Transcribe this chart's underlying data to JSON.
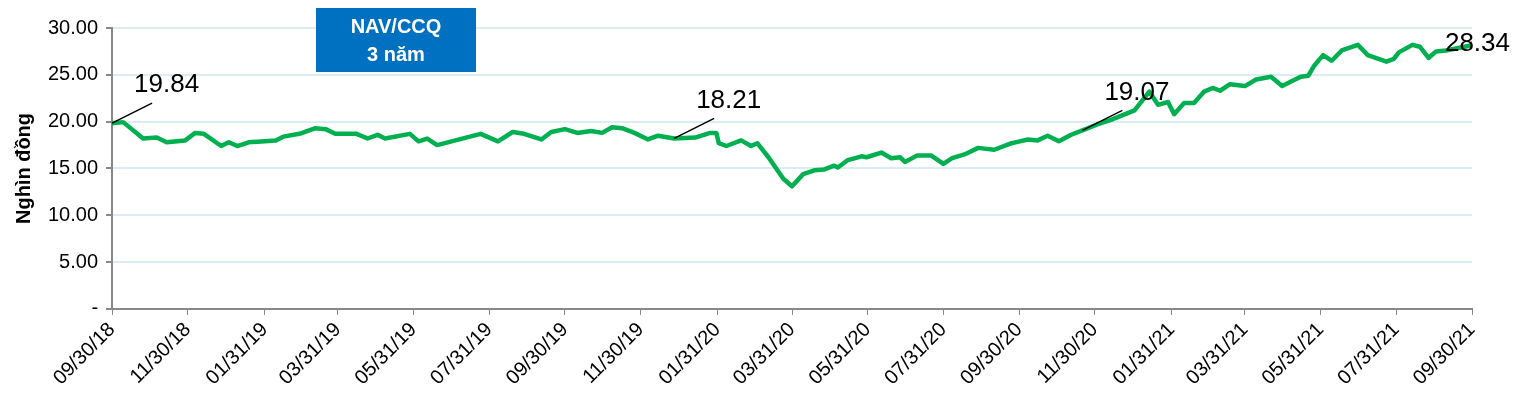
{
  "chart_data": {
    "type": "line",
    "title": "NAV/CCQ\n3 năm",
    "ylabel": "Nghìn đồng",
    "x": [
      "2018-09-30",
      "2018-10-09",
      "2018-10-25",
      "2018-11-05",
      "2018-11-13",
      "2018-11-28",
      "2018-12-06",
      "2018-12-13",
      "2018-12-27",
      "2019-01-02",
      "2019-01-09",
      "2019-01-18",
      "2019-02-09",
      "2019-02-15",
      "2019-02-28",
      "2019-03-13",
      "2019-03-21",
      "2019-03-29",
      "2019-04-15",
      "2019-04-24",
      "2019-05-02",
      "2019-05-08",
      "2019-05-28",
      "2019-06-04",
      "2019-06-11",
      "2019-06-19",
      "2019-07-24",
      "2019-08-07",
      "2019-08-19",
      "2019-08-28",
      "2019-09-11",
      "2019-09-19",
      "2019-09-30",
      "2019-10-10",
      "2019-10-21",
      "2019-10-30",
      "2019-11-07",
      "2019-11-15",
      "2019-11-25",
      "2019-12-06",
      "2019-12-14",
      "2019-12-27",
      "2020-01-13",
      "2020-01-25",
      "2020-01-30",
      "2020-02-01",
      "2020-02-07",
      "2020-02-19",
      "2020-02-27",
      "2020-03-03",
      "2020-03-12",
      "2020-03-24",
      "2020-03-31",
      "2020-04-09",
      "2020-04-18",
      "2020-04-26",
      "2020-05-04",
      "2020-05-07",
      "2020-05-15",
      "2020-05-26",
      "2020-05-30",
      "2020-06-11",
      "2020-06-19",
      "2020-06-26",
      "2020-06-30",
      "2020-07-10",
      "2020-07-21",
      "2020-07-31",
      "2020-08-07",
      "2020-08-17",
      "2020-08-28",
      "2020-09-10",
      "2020-09-24",
      "2020-10-07",
      "2020-10-15",
      "2020-10-23",
      "2020-11-01",
      "2020-11-11",
      "2020-11-20",
      "2020-12-02",
      "2020-12-13",
      "2021-01-01",
      "2021-01-13",
      "2021-01-20",
      "2021-01-28",
      "2021-02-02",
      "2021-02-10",
      "2021-02-18",
      "2021-02-26",
      "2021-03-05",
      "2021-03-11",
      "2021-03-19",
      "2021-03-31",
      "2021-04-09",
      "2021-04-21",
      "2021-04-30",
      "2021-05-06",
      "2021-05-15",
      "2021-05-21",
      "2021-05-26",
      "2021-06-02",
      "2021-06-09",
      "2021-06-17",
      "2021-06-30",
      "2021-07-08",
      "2021-07-23",
      "2021-07-29",
      "2021-08-02",
      "2021-08-13",
      "2021-08-19",
      "2021-08-26",
      "2021-09-01",
      "2021-09-09",
      "2021-09-28",
      "2021-09-30"
    ],
    "series": [
      {
        "color": "#00b050",
        "values": [
          19.84,
          19.95,
          18.2,
          18.3,
          17.8,
          18.0,
          18.8,
          18.7,
          17.4,
          17.8,
          17.4,
          17.8,
          18.0,
          18.4,
          18.7,
          19.3,
          19.2,
          18.7,
          18.7,
          18.2,
          18.6,
          18.2,
          18.7,
          17.9,
          18.2,
          17.5,
          18.7,
          17.9,
          18.9,
          18.7,
          18.1,
          18.9,
          19.2,
          18.8,
          19.0,
          18.8,
          19.4,
          19.3,
          18.8,
          18.1,
          18.5,
          18.21,
          18.3,
          18.8,
          18.8,
          17.7,
          17.4,
          18.0,
          17.4,
          17.7,
          16.2,
          13.9,
          13.1,
          14.4,
          14.8,
          14.9,
          15.3,
          15.1,
          15.9,
          16.3,
          16.2,
          16.7,
          16.1,
          16.2,
          15.7,
          16.4,
          16.4,
          15.5,
          16.1,
          16.5,
          17.2,
          17.0,
          17.7,
          18.1,
          18.0,
          18.5,
          17.9,
          18.6,
          19.07,
          19.7,
          20.2,
          21.2,
          23.2,
          21.8,
          22.1,
          20.8,
          22.0,
          22.0,
          23.2,
          23.6,
          23.3,
          24.0,
          23.8,
          24.5,
          24.8,
          23.8,
          24.2,
          24.8,
          24.9,
          26.0,
          27.1,
          26.5,
          27.6,
          28.2,
          27.1,
          26.4,
          26.7,
          27.4,
          28.2,
          28.0,
          26.8,
          27.5,
          27.6,
          28.1,
          28.34
        ]
      }
    ],
    "xlim": [
      "2018-09-30",
      "2021-09-30"
    ],
    "xticks": [
      {
        "value": "2018-09-30",
        "label": "09/30/18"
      },
      {
        "value": "2018-11-30",
        "label": "11/30/18"
      },
      {
        "value": "2019-01-31",
        "label": "01/31/19"
      },
      {
        "value": "2019-03-31",
        "label": "03/31/19"
      },
      {
        "value": "2019-05-31",
        "label": "05/31/19"
      },
      {
        "value": "2019-07-31",
        "label": "07/31/19"
      },
      {
        "value": "2019-09-30",
        "label": "09/30/19"
      },
      {
        "value": "2019-11-30",
        "label": "11/30/19"
      },
      {
        "value": "2020-01-31",
        "label": "01/31/20"
      },
      {
        "value": "2020-03-31",
        "label": "03/31/20"
      },
      {
        "value": "2020-05-31",
        "label": "05/31/20"
      },
      {
        "value": "2020-07-31",
        "label": "07/31/20"
      },
      {
        "value": "2020-09-30",
        "label": "09/30/20"
      },
      {
        "value": "2020-11-30",
        "label": "11/30/20"
      },
      {
        "value": "2021-01-31",
        "label": "01/31/21"
      },
      {
        "value": "2021-03-31",
        "label": "03/31/21"
      },
      {
        "value": "2021-05-31",
        "label": "05/31/21"
      },
      {
        "value": "2021-07-31",
        "label": "07/31/21"
      },
      {
        "value": "2021-09-30",
        "label": "09/30/21"
      }
    ],
    "ylim": [
      0,
      30
    ],
    "yticks": [
      {
        "value": 0,
        "label": "-"
      },
      {
        "value": 5,
        "label": "5.00"
      },
      {
        "value": 10,
        "label": "10.00"
      },
      {
        "value": 15,
        "label": "15.00"
      },
      {
        "value": 20,
        "label": "20.00"
      },
      {
        "value": 25,
        "label": "25.00"
      },
      {
        "value": 30,
        "label": "30.00"
      }
    ],
    "annotations": [
      {
        "text": "19.84",
        "x": "2018-09-30",
        "y": 19.84
      },
      {
        "text": "18.21",
        "x": "2019-12-27",
        "y": 18.21
      },
      {
        "text": "19.07",
        "x": "2020-11-20",
        "y": 19.07
      },
      {
        "text": "28.34",
        "x": "2021-09-30",
        "y": 28.34
      }
    ],
    "grid": "y",
    "legend": false,
    "marker": "none",
    "line_style": "solid"
  }
}
